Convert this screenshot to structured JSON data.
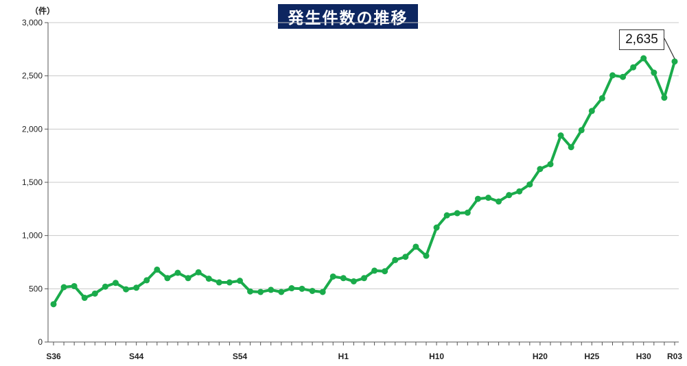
{
  "chart_data": {
    "type": "line",
    "title": "発生件数の推移",
    "y_unit": "（件）",
    "ylim": [
      0,
      3000
    ],
    "y_ticks": [
      0,
      500,
      1000,
      1500,
      2000,
      2500,
      3000
    ],
    "y_tick_labels": [
      "0",
      "500",
      "1,000",
      "1,500",
      "2,000",
      "2,500",
      "3,000"
    ],
    "x_tick_labels": [
      {
        "label": "S36",
        "index": 0
      },
      {
        "label": "S44",
        "index": 8
      },
      {
        "label": "S54",
        "index": 18
      },
      {
        "label": "H1",
        "index": 28
      },
      {
        "label": "H10",
        "index": 37
      },
      {
        "label": "H20",
        "index": 47
      },
      {
        "label": "H25",
        "index": 52
      },
      {
        "label": "H30",
        "index": 57
      },
      {
        "label": "R03",
        "index": 60
      }
    ],
    "series": [
      {
        "color": "#1aab4b",
        "values": [
          355,
          515,
          525,
          415,
          455,
          520,
          555,
          495,
          510,
          580,
          680,
          600,
          650,
          600,
          655,
          595,
          560,
          560,
          575,
          475,
          470,
          490,
          470,
          505,
          500,
          480,
          470,
          615,
          600,
          570,
          600,
          670,
          665,
          770,
          800,
          895,
          810,
          1075,
          1190,
          1210,
          1215,
          1345,
          1355,
          1320,
          1380,
          1415,
          1480,
          1625,
          1670,
          1940,
          1830,
          1990,
          2170,
          2290,
          2505,
          2490,
          2580,
          2665,
          2530,
          2295,
          2635
        ]
      }
    ],
    "annotation": {
      "label": "2,635",
      "index": 60
    },
    "grid": true
  }
}
